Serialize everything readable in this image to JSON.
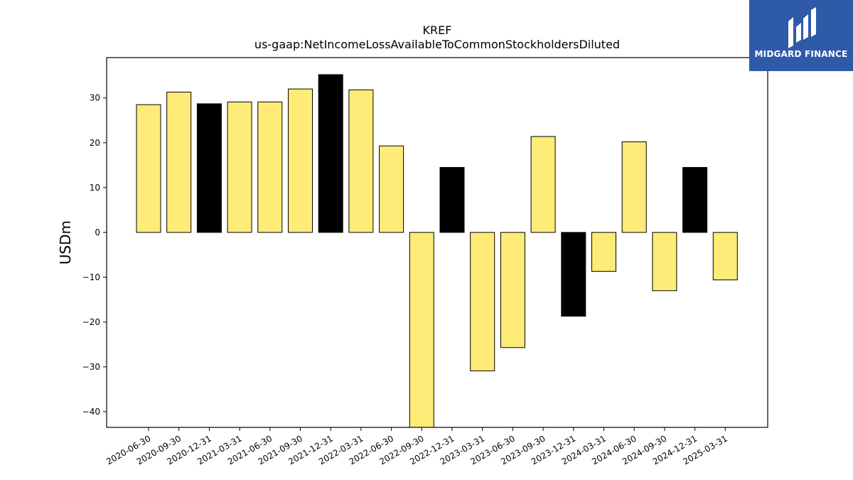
{
  "chart_data": {
    "type": "bar",
    "title": "KREF",
    "subtitle": "us-gaap:NetIncomeLossAvailableToCommonStockholdersDiluted",
    "ylabel": "USDm",
    "xlabel": "",
    "ylim": [
      -43.5,
      39
    ],
    "yticks": [
      -40,
      -30,
      -20,
      -10,
      0,
      10,
      20,
      30
    ],
    "categories": [
      "2020-06-30",
      "2020-09-30",
      "2020-12-31",
      "2021-03-31",
      "2021-06-30",
      "2021-09-30",
      "2021-12-31",
      "2022-03-31",
      "2022-06-30",
      "2022-09-30",
      "2022-12-31",
      "2023-03-31",
      "2023-06-30",
      "2023-09-30",
      "2023-12-31",
      "2024-03-31",
      "2024-06-30",
      "2024-09-30",
      "2024-12-31",
      "2025-03-31"
    ],
    "values": [
      28.5,
      31.3,
      28.7,
      29.1,
      29.1,
      32.0,
      35.2,
      31.8,
      19.3,
      -43.5,
      14.5,
      -30.9,
      -25.7,
      21.4,
      -18.7,
      -8.7,
      20.2,
      -13.0,
      14.5,
      -10.6
    ],
    "bar_colors": [
      "#ffeb77",
      "#ffeb77",
      "#000000",
      "#ffeb77",
      "#ffeb77",
      "#ffeb77",
      "#000000",
      "#ffeb77",
      "#ffeb77",
      "#ffeb77",
      "#000000",
      "#ffeb77",
      "#ffeb77",
      "#ffeb77",
      "#000000",
      "#ffeb77",
      "#ffeb77",
      "#ffeb77",
      "#000000",
      "#ffeb77"
    ],
    "grid": false,
    "legend": "none"
  },
  "logo": {
    "text": "MIDGARD FINANCE",
    "background": "#2f5aa8",
    "icon": "midgard-logo-icon"
  }
}
